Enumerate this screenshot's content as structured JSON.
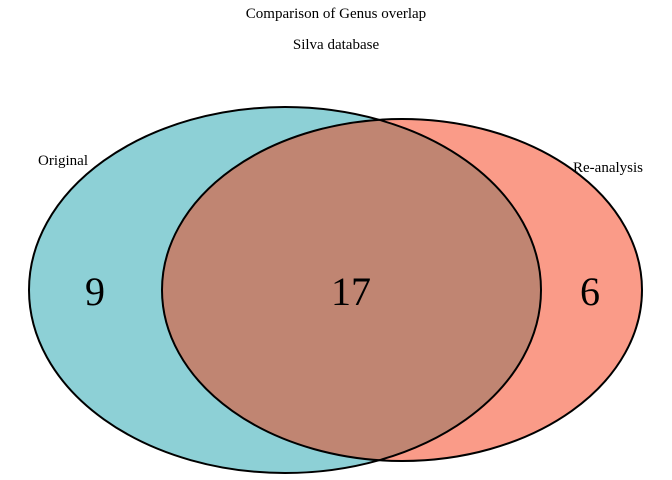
{
  "diagram": {
    "title": "Comparison of Genus overlap",
    "subtitle": "Silva database",
    "sets": [
      {
        "label": "Original",
        "color": "#8dd0d6"
      },
      {
        "label": "Re-analysis",
        "color": "#fa9b88"
      }
    ],
    "overlap_color": "#c08572",
    "counts": {
      "only_original": "9",
      "both": "17",
      "only_reanalysis": "6"
    }
  }
}
